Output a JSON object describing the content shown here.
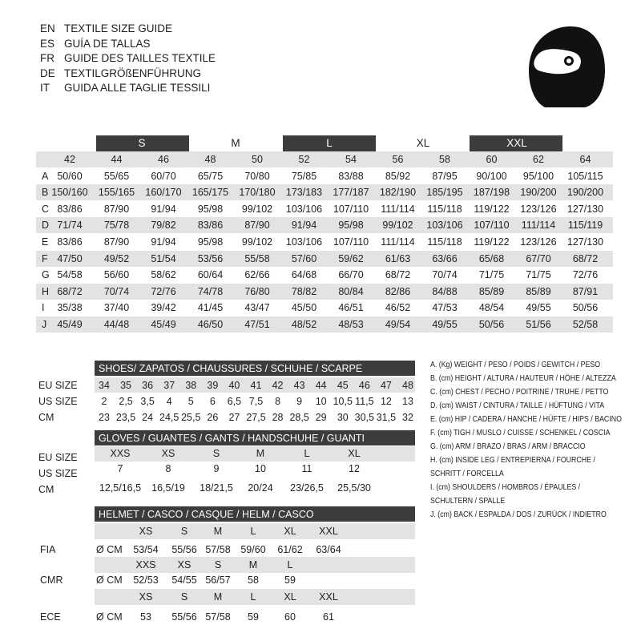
{
  "header": {
    "lines": [
      {
        "lang": "EN",
        "text": "TEXTILE SIZE GUIDE"
      },
      {
        "lang": "ES",
        "text": "GUÍA DE TALLAS"
      },
      {
        "lang": "FR",
        "text": "GUIDE DES TAILLES TEXTILE"
      },
      {
        "lang": "DE",
        "text": "TEXTILGRÖßENFÜHRUNG"
      },
      {
        "lang": "IT",
        "text": "GUIDA ALLE TAGLIE TESSILI"
      }
    ]
  },
  "textile": {
    "sizes": [
      "S",
      "M",
      "L",
      "XL",
      "XXL"
    ],
    "numbers": [
      "42",
      "44",
      "46",
      "48",
      "50",
      "52",
      "54",
      "56",
      "58",
      "60",
      "62",
      "64"
    ],
    "rows": [
      {
        "label": "A",
        "values": [
          "50/60",
          "55/65",
          "60/70",
          "65/75",
          "70/80",
          "75/85",
          "83/88",
          "85/92",
          "87/95",
          "90/100",
          "95/100",
          "105/115"
        ]
      },
      {
        "label": "B",
        "values": [
          "150/160",
          "155/165",
          "160/170",
          "165/175",
          "170/180",
          "173/183",
          "177/187",
          "182/190",
          "185/195",
          "187/198",
          "190/200",
          "190/200"
        ]
      },
      {
        "label": "C",
        "values": [
          "83/86",
          "87/90",
          "91/94",
          "95/98",
          "99/102",
          "103/106",
          "107/110",
          "111/114",
          "115/118",
          "119/122",
          "123/126",
          "127/130"
        ]
      },
      {
        "label": "D",
        "values": [
          "71/74",
          "75/78",
          "79/82",
          "83/86",
          "87/90",
          "91/94",
          "95/98",
          "99/102",
          "103/106",
          "107/110",
          "111/114",
          "115/119"
        ]
      },
      {
        "label": "E",
        "values": [
          "83/86",
          "87/90",
          "91/94",
          "95/98",
          "99/102",
          "103/106",
          "107/110",
          "111/114",
          "115/118",
          "119/122",
          "123/126",
          "127/130"
        ]
      },
      {
        "label": "F",
        "values": [
          "47/50",
          "49/52",
          "51/54",
          "53/56",
          "55/58",
          "57/60",
          "59/62",
          "61/63",
          "63/66",
          "65/68",
          "67/70",
          "68/72"
        ]
      },
      {
        "label": "G",
        "values": [
          "54/58",
          "56/60",
          "58/62",
          "60/64",
          "62/66",
          "64/68",
          "66/70",
          "68/72",
          "70/74",
          "71/75",
          "71/75",
          "72/76"
        ]
      },
      {
        "label": "H",
        "values": [
          "68/72",
          "70/74",
          "72/76",
          "74/78",
          "76/80",
          "78/82",
          "80/84",
          "82/86",
          "84/88",
          "85/89",
          "85/89",
          "87/91"
        ]
      },
      {
        "label": "I",
        "values": [
          "35/38",
          "37/40",
          "39/42",
          "41/45",
          "43/47",
          "45/50",
          "46/51",
          "46/52",
          "47/53",
          "48/54",
          "49/55",
          "50/56"
        ]
      },
      {
        "label": "J",
        "values": [
          "45/49",
          "44/48",
          "45/49",
          "46/50",
          "47/51",
          "48/52",
          "48/53",
          "49/54",
          "49/55",
          "50/56",
          "51/56",
          "52/58"
        ]
      }
    ]
  },
  "shoes": {
    "title": "SHOES/ ZAPATOS / CHAUSSURES / SCHUHE / SCARPE",
    "rows": [
      {
        "label": "EU SIZE",
        "values": [
          "34",
          "35",
          "36",
          "37",
          "38",
          "39",
          "40",
          "41",
          "42",
          "43",
          "44",
          "45",
          "46",
          "47",
          "48"
        ]
      },
      {
        "label": "US SIZE",
        "values": [
          "2",
          "2,5",
          "3,5",
          "4",
          "5",
          "6",
          "6,5",
          "7,5",
          "8",
          "9",
          "10",
          "10,5",
          "11,5",
          "12",
          "13"
        ]
      },
      {
        "label": "CM",
        "values": [
          "23",
          "23,5",
          "24",
          "24,5",
          "25,5",
          "26",
          "27",
          "27,5",
          "28",
          "28,5",
          "29",
          "30",
          "30,5",
          "31,5",
          "32"
        ]
      }
    ]
  },
  "gloves": {
    "title": "GLOVES / GUANTES / GANTS / HANDSCHUHE / GUANTI",
    "rows": [
      {
        "label": "EU SIZE",
        "values": [
          "XXS",
          "XS",
          "S",
          "M",
          "L",
          "XL"
        ]
      },
      {
        "label": "US SIZE",
        "values": [
          "7",
          "8",
          "9",
          "10",
          "11",
          "12"
        ]
      },
      {
        "label": "CM",
        "values": [
          "12,5/16,5",
          "16,5/19",
          "18/21,5",
          "20/24",
          "23/26,5",
          "25,5/30"
        ]
      }
    ]
  },
  "helmet": {
    "title": "HELMET / CASCO / CASQUE / HELM / CASCO",
    "rows": [
      {
        "label": "FIA",
        "sizes": [
          "XS",
          "S",
          "M",
          "L",
          "XL",
          "XXL"
        ],
        "unit": "Ø CM",
        "values": [
          "53/54",
          "55/56",
          "57/58",
          "59/60",
          "61/62",
          "63/64"
        ]
      },
      {
        "label": "CMR",
        "sizes": [
          "XXS",
          "XS",
          "S",
          "M",
          "L"
        ],
        "unit": "Ø CM",
        "values": [
          "52/53",
          "54/55",
          "56/57",
          "58",
          "59"
        ]
      },
      {
        "label": "ECE",
        "sizes": [
          "XS",
          "S",
          "M",
          "L",
          "XL",
          "XXL"
        ],
        "unit": "Ø CM",
        "values": [
          "53",
          "55/56",
          "57/58",
          "59",
          "60",
          "61"
        ]
      }
    ]
  },
  "legend": [
    "A. (Kg) WEIGHT / PESO / POIDS / GEWITCH / PESO",
    "B. (cm) HEIGHT / ALTURA / HAUTEUR / HÖHE / ALTEZZA",
    "C. (cm) CHEST / PECHO / POITRINE / TRUHE / PETTO",
    "D. (cm) WAIST / CINTURA / TAILLE / HÜFTUNG / VITA",
    "E. (cm) HIP / CADERA / HANCHE / HÜFTE / HIPS / BACINO",
    "F. (cm) TIGH / MUSLO / CUISSE / SCHENKEL / COSCIA",
    "G. (cm) ARM  / BRAZO / BRAS / ARM / BRACCIO",
    "H. (cm) INSIDE LEG / ENTREPIERNA / FOURCHE /",
    "SCHRITT / FORCELLA",
    "I. (cm) SHOULDERS / HOMBROS / ÉPAULES /",
    "SCHULTERN / SPALLE",
    "J. (cm) BACK / ESPALDA / DOS / ZURÜCK / INDIETRO"
  ]
}
